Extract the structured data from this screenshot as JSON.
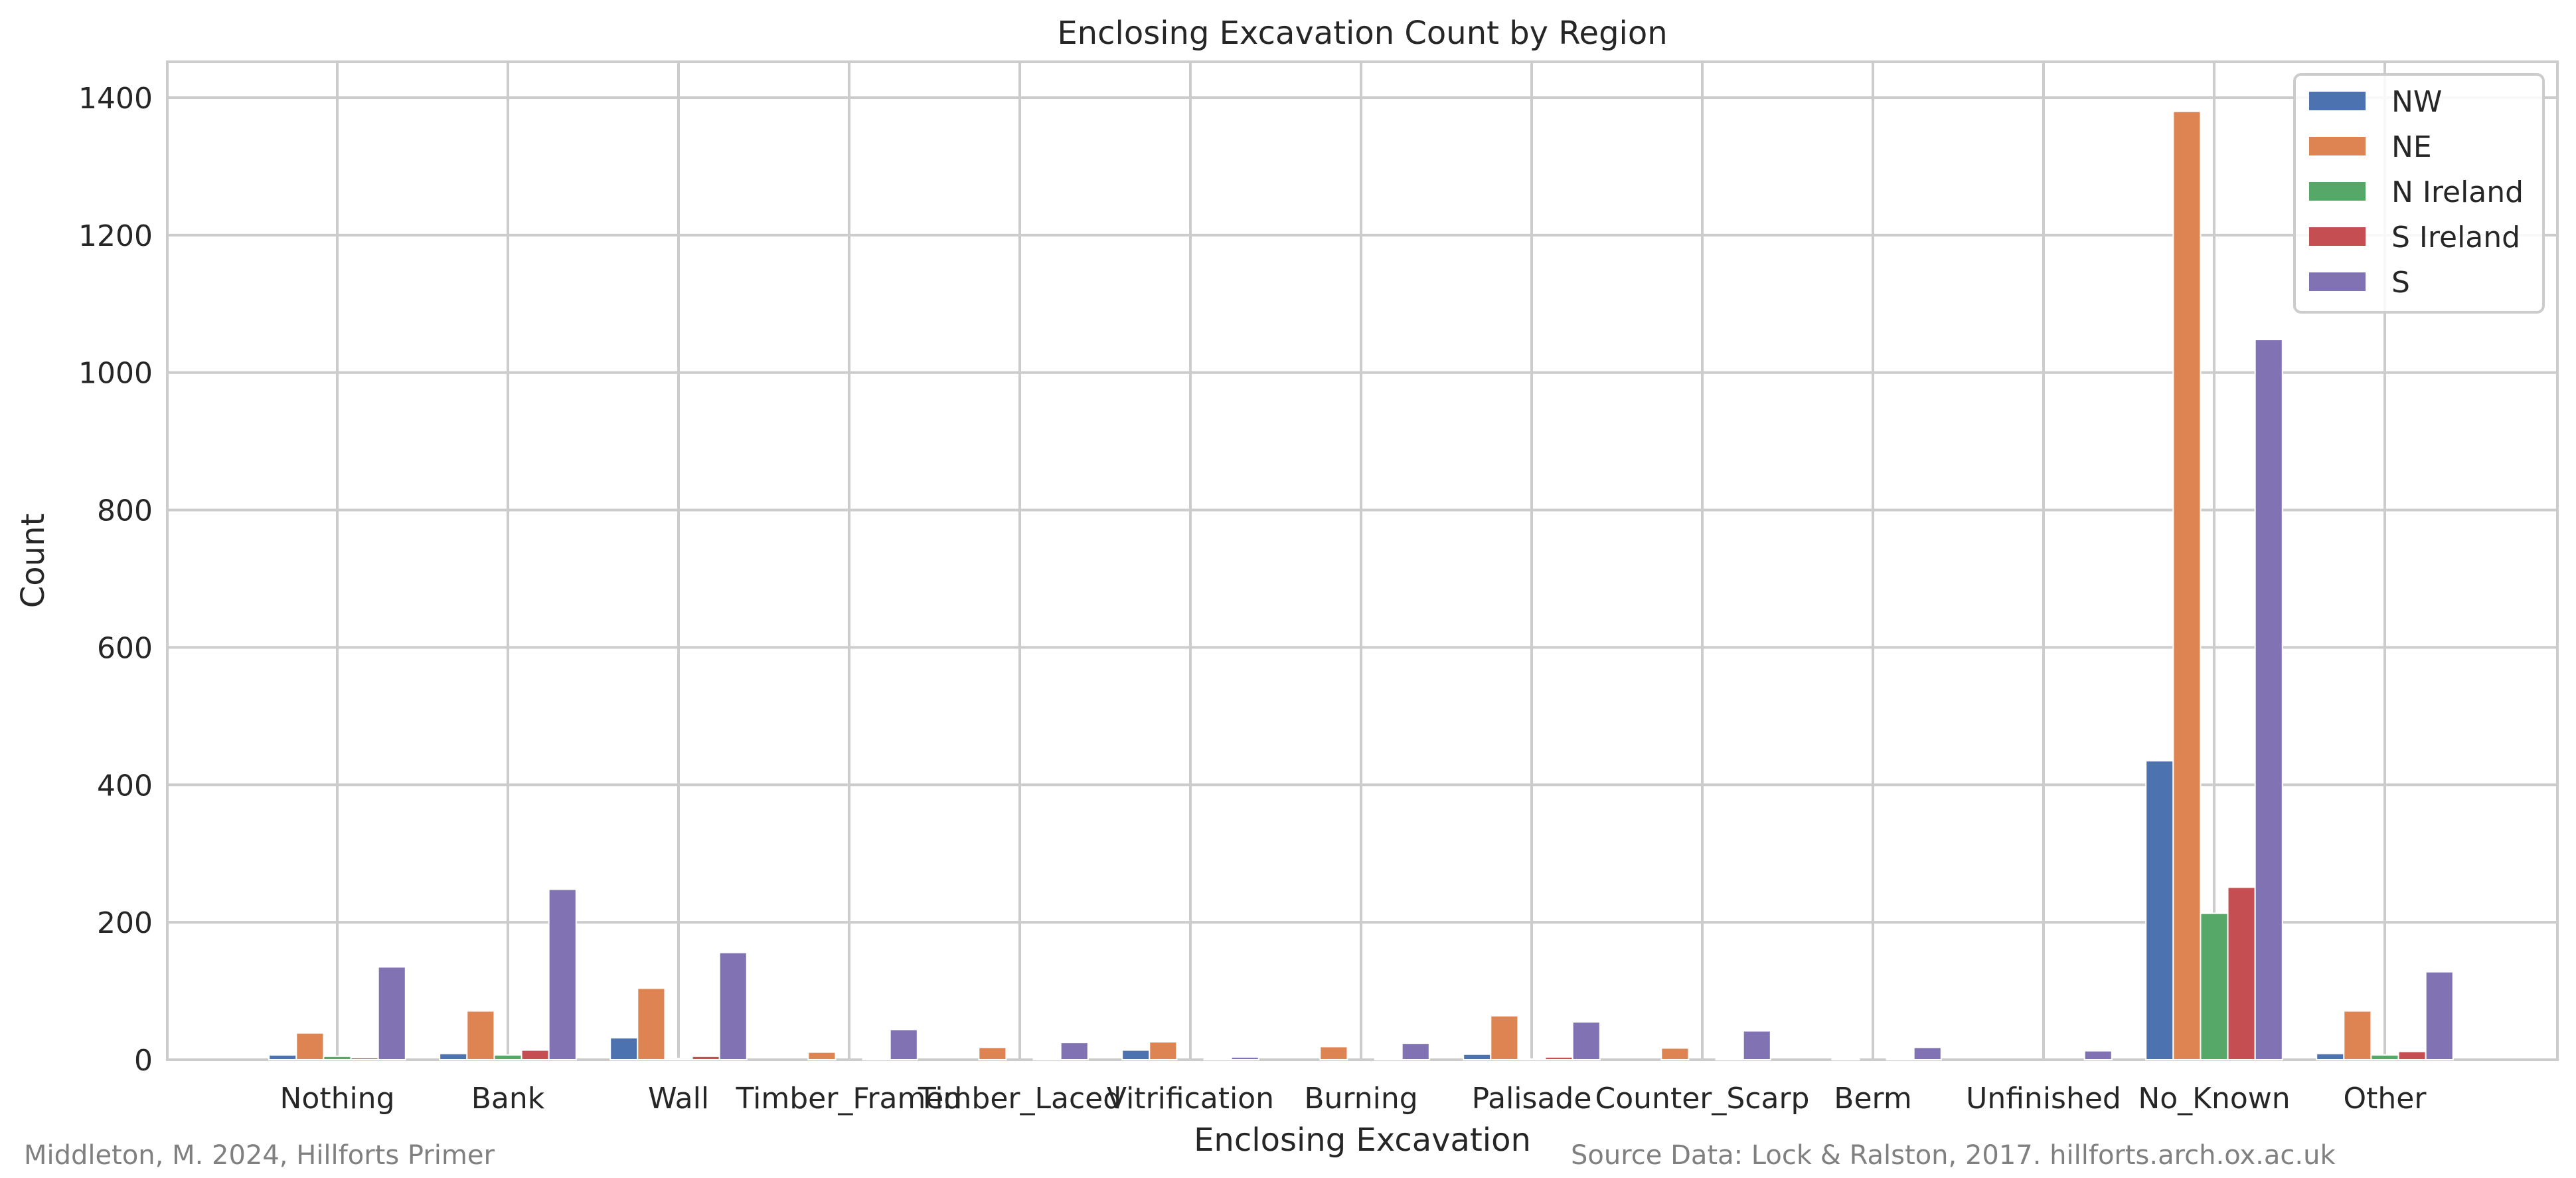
{
  "chart_data": {
    "type": "bar",
    "title": "Enclosing Excavation Count by Region",
    "xlabel": "Enclosing Excavation",
    "ylabel": "Count",
    "ylim": [
      0,
      1450
    ],
    "yticks": [
      0,
      200,
      400,
      600,
      800,
      1000,
      1200,
      1400
    ],
    "grid": true,
    "legend_position": "top-right",
    "categories": [
      "Nothing",
      "Bank",
      "Wall",
      "Timber_Framed",
      "Timber_Laced",
      "Vitrification",
      "Burning",
      "Palisade",
      "Counter_Scarp",
      "Berm",
      "Unfinished",
      "No_Known",
      "Other"
    ],
    "series": [
      {
        "name": "NW",
        "color": "#4C72B0",
        "values": [
          7,
          9,
          32,
          0,
          0,
          14,
          0,
          8,
          0,
          0,
          0,
          435,
          9
        ]
      },
      {
        "name": "NE",
        "color": "#DD8452",
        "values": [
          39,
          71,
          104,
          11,
          18,
          26,
          19,
          64,
          17,
          1,
          0,
          1380,
          71
        ]
      },
      {
        "name": "N Ireland",
        "color": "#55A868",
        "values": [
          5,
          7,
          2,
          0,
          0,
          0,
          0,
          1,
          0,
          0,
          0,
          213,
          7
        ]
      },
      {
        "name": "S Ireland",
        "color": "#C44E52",
        "values": [
          3,
          14,
          5,
          1,
          1,
          1,
          1,
          4,
          1,
          1,
          0,
          251,
          12
        ]
      },
      {
        "name": "S",
        "color": "#8172B3",
        "values": [
          135,
          248,
          156,
          44,
          25,
          4,
          24,
          55,
          42,
          18,
          13,
          1048,
          128
        ]
      }
    ]
  },
  "footer": {
    "left": "Middleton, M. 2024, Hillforts Primer",
    "right": "Source Data: Lock & Ralston, 2017. hillforts.arch.ox.ac.uk"
  }
}
